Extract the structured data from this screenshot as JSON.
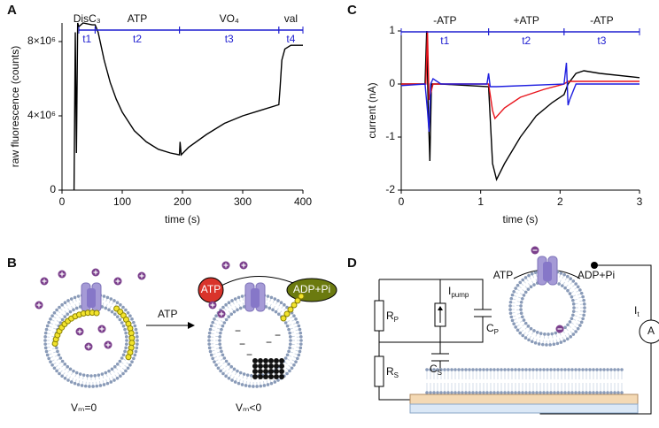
{
  "chart_data": [
    {
      "type": "line",
      "panel": "A",
      "xlabel": "time (s)",
      "ylabel": "raw fluorescence  (counts)",
      "xlim": [
        0,
        400
      ],
      "xticks": [
        0,
        100,
        200,
        300,
        400
      ],
      "ylim": [
        0,
        9000000
      ],
      "yticks": [
        0,
        {
          "value": 4000000,
          "label": "4×10⁶"
        },
        {
          "value": 8000000,
          "label": "8×10⁶"
        }
      ],
      "intervals": [
        {
          "label": "DisC₃",
          "sub_label": "t1",
          "x": [
            28,
            55
          ]
        },
        {
          "label": "ATP",
          "sub_label": "t2",
          "x": [
            55,
            195
          ]
        },
        {
          "label": "VO₄",
          "sub_label": "t3",
          "x": [
            195,
            360
          ]
        },
        {
          "label": "val",
          "sub_label": "t4",
          "x": [
            360,
            400
          ]
        }
      ],
      "series": [
        {
          "color": "#000000",
          "x": [
            20,
            22,
            24,
            26,
            28,
            35,
            50,
            55,
            60,
            70,
            80,
            90,
            100,
            120,
            140,
            160,
            180,
            195,
            196,
            198,
            210,
            240,
            270,
            300,
            330,
            360,
            362,
            365,
            370,
            380,
            400
          ],
          "values": [
            0,
            8500000,
            2000000,
            9000000,
            8800000,
            9000000,
            8900000,
            8900000,
            8500000,
            7000000,
            5800000,
            4900000,
            4200000,
            3200000,
            2600000,
            2200000,
            2000000,
            1900000,
            2600000,
            1900000,
            2300000,
            3000000,
            3600000,
            4000000,
            4300000,
            4600000,
            5500000,
            7000000,
            7600000,
            7800000,
            7800000
          ]
        }
      ]
    },
    {
      "type": "line",
      "panel": "C",
      "xlabel": "time (s)",
      "ylabel": "current (nA)",
      "xlim": [
        0,
        3
      ],
      "xticks": [
        0,
        1,
        2,
        3
      ],
      "ylim": [
        -2,
        1
      ],
      "yticks": [
        -2,
        -1,
        0,
        1
      ],
      "intervals": [
        {
          "label": "-ATP",
          "sub_label": "t1",
          "x": [
            0,
            1.1
          ]
        },
        {
          "label": "+ATP",
          "sub_label": "t2",
          "x": [
            1.1,
            2.05
          ]
        },
        {
          "label": "-ATP",
          "sub_label": "t3",
          "x": [
            2.05,
            3
          ]
        }
      ],
      "series": [
        {
          "color": "#000000",
          "x": [
            0,
            0.3,
            0.32,
            0.34,
            0.36,
            0.38,
            0.5,
            1.1,
            1.15,
            1.2,
            1.3,
            1.5,
            1.7,
            1.9,
            2.05,
            2.1,
            2.2,
            2.3,
            2.5,
            3
          ],
          "values": [
            0,
            0,
            1,
            -0.5,
            -1.45,
            0,
            0,
            -0.05,
            -1.5,
            -1.8,
            -1.5,
            -1,
            -0.6,
            -0.35,
            -0.2,
            0,
            0.2,
            0.25,
            0.2,
            0.12
          ]
        },
        {
          "color": "#e8141c",
          "x": [
            0,
            0.31,
            0.33,
            0.35,
            0.4,
            1.1,
            1.15,
            1.18,
            1.3,
            1.5,
            1.8,
            2.05,
            2.1,
            3
          ],
          "values": [
            0,
            0,
            1,
            -0.3,
            0,
            0,
            -0.5,
            -0.65,
            -0.45,
            -0.25,
            -0.1,
            0,
            0.05,
            0.05
          ]
        },
        {
          "color": "#1f1fe0",
          "x": [
            0,
            0.3,
            0.33,
            0.35,
            0.37,
            0.4,
            0.5,
            1.08,
            1.1,
            1.12,
            1.2,
            2.05,
            2.08,
            2.1,
            2.12,
            2.2,
            3
          ],
          "values": [
            -0.03,
            0,
            -0.5,
            -0.9,
            0,
            0.1,
            0,
            0,
            0.2,
            -0.05,
            -0.05,
            0,
            0.4,
            -0.4,
            -0.3,
            0,
            0
          ]
        }
      ]
    }
  ],
  "panel_b": {
    "panel": "B",
    "arrow_label": "ATP",
    "atp": "ATP",
    "adp": "ADP+Pi",
    "left_label": "Vₘ=0",
    "right_label": "Vₘ<0"
  },
  "panel_d": {
    "panel": "D",
    "atp": "ATP",
    "adp": "ADP+Pi",
    "rp": {
      "text": "R",
      "sub": "P"
    },
    "ipump": {
      "text": "I",
      "sub": "pump"
    },
    "cp": {
      "text": "C",
      "sub": "P"
    },
    "rs": {
      "text": "R",
      "sub": "S"
    },
    "cs": {
      "text": "C",
      "sub": "S"
    },
    "it": {
      "text": "I",
      "sub": "t"
    },
    "meter": "A"
  }
}
